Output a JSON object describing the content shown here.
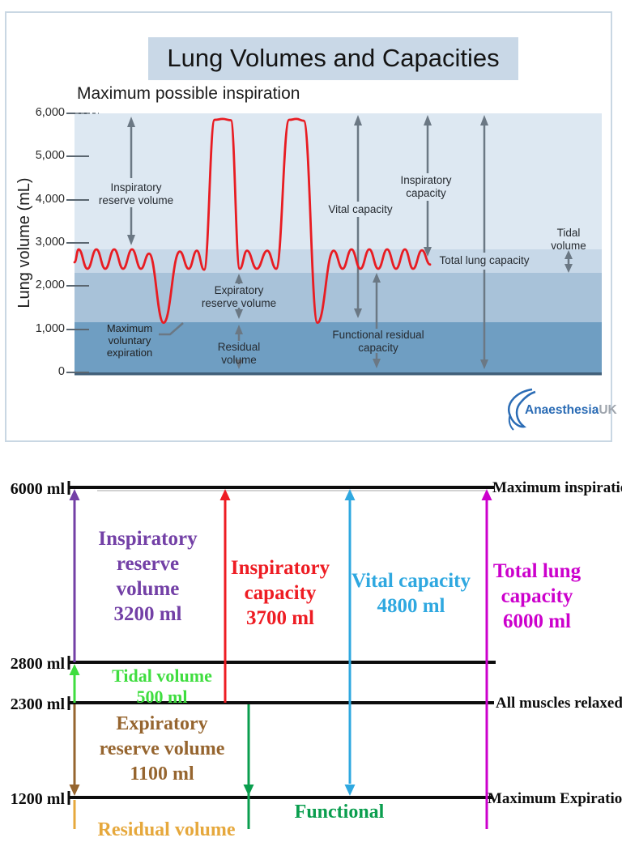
{
  "figure1": {
    "title": "Lung Volumes and Capacities",
    "top_label": "Maximum possible inspiration",
    "y_axis": {
      "label": "Lung volume (mL)",
      "ticks": [
        "6,000",
        "5,000",
        "4,000",
        "3,000",
        "2,000",
        "1,000",
        "0"
      ]
    },
    "labels": {
      "inspiratory_reserve_volume": "Inspiratory\nreserve volume",
      "expiratory_reserve_volume": "Expiratory\nreserve volume",
      "residual_volume": "Residual\nvolume",
      "vital_capacity": "Vital capacity",
      "inspiratory_capacity": "Inspiratory\ncapacity",
      "total_lung_capacity": "Total lung capacity",
      "tidal_volume": "Tidal\nvolume",
      "functional_residual_capacity": "Functional residual\ncapacity",
      "maximum_voluntary_expiration": "Maximum\nvoluntary\nexpiration"
    },
    "logo": {
      "name": "Anaesthesia",
      "suffix": "UK"
    },
    "colors": {
      "curve": "#e81c22",
      "arrows": "#6b7884",
      "title_box": "#c9d8e7"
    }
  },
  "figure2": {
    "levels": [
      {
        "value": "6000 ml",
        "right_label": "Maximum inspiration"
      },
      {
        "value": "2800 ml",
        "right_label": ""
      },
      {
        "value": "2300 ml",
        "right_label": "All muscles relaxed"
      },
      {
        "value": "1200 ml",
        "right_label": "Maximum Expiration"
      }
    ],
    "volumes": {
      "irv": {
        "label": "Inspiratory\nreserve\nvolume\n3200 ml",
        "color": "#7340a6"
      },
      "ic": {
        "label": "Inspiratory\ncapacity\n3700 ml",
        "color": "#ee1c23"
      },
      "vc": {
        "label": "Vital capacity\n4800 ml",
        "color": "#2fa8e0"
      },
      "tlc": {
        "label": "Total lung\ncapacity\n6000 ml",
        "color": "#cc00cc"
      },
      "tv": {
        "label": "Tidal volume\n500 ml",
        "color": "#3fdd3f"
      },
      "erv": {
        "label": "Expiratory\nreserve volume\n1100 ml",
        "color": "#96652f"
      },
      "frc": {
        "label": "Functional",
        "color": "#0a9e4e"
      },
      "rv": {
        "label": "Residual volume",
        "color": "#e6a83c"
      }
    }
  },
  "chart_data": {
    "type": "line",
    "title": "Lung Volumes and Capacities",
    "ylabel": "Lung volume (mL)",
    "ylim": [
      0,
      6000
    ],
    "yticks": [
      0,
      1000,
      2000,
      3000,
      4000,
      5000,
      6000
    ],
    "levels_ml": {
      "maximum_inspiration": 6000,
      "tidal_top": 2800,
      "all_muscles_relaxed": 2300,
      "maximum_expiration": 1200,
      "bottom": 0
    },
    "volumes_ml": {
      "inspiratory_reserve_volume": 3200,
      "tidal_volume": 500,
      "expiratory_reserve_volume": 1100,
      "residual_volume": 1200,
      "inspiratory_capacity": 3700,
      "functional_residual_capacity": 2300,
      "vital_capacity": 4800,
      "total_lung_capacity": 6000
    },
    "waveform": {
      "comment": "spirometry trace extrema: [x_px, volume_ml]",
      "points": [
        [
          92,
          2550
        ],
        [
          97,
          2850
        ],
        [
          108,
          2400
        ],
        [
          119,
          2850
        ],
        [
          130,
          2400
        ],
        [
          141,
          2850
        ],
        [
          152,
          2400
        ],
        [
          163,
          2850
        ],
        [
          174,
          2400
        ],
        [
          184,
          2750
        ],
        [
          202,
          1150
        ],
        [
          222,
          2800
        ],
        [
          233,
          2400
        ],
        [
          243,
          2820
        ],
        [
          252,
          2380
        ],
        [
          265,
          5850
        ],
        [
          275,
          5870
        ],
        [
          285,
          5840
        ],
        [
          296,
          2400
        ],
        [
          305,
          2820
        ],
        [
          317,
          2400
        ],
        [
          330,
          2820
        ],
        [
          341,
          2400
        ],
        [
          357,
          5850
        ],
        [
          366,
          5870
        ],
        [
          375,
          5830
        ],
        [
          392,
          1150
        ],
        [
          412,
          2820
        ],
        [
          423,
          2400
        ],
        [
          434,
          2850
        ],
        [
          445,
          2400
        ],
        [
          456,
          2850
        ],
        [
          467,
          2400
        ],
        [
          478,
          2850
        ],
        [
          489,
          2400
        ],
        [
          500,
          2850
        ],
        [
          510,
          2400
        ],
        [
          521,
          2830
        ],
        [
          531,
          2500
        ]
      ]
    }
  }
}
